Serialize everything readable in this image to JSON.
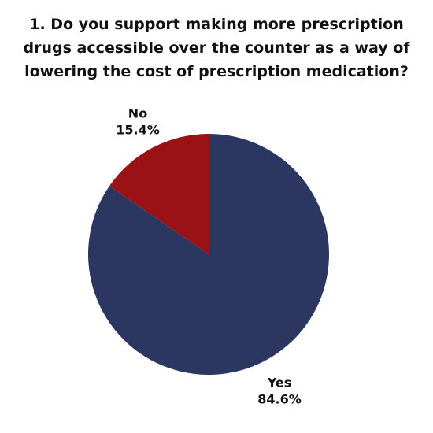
{
  "chart_data": {
    "type": "pie",
    "title": "1. Do you support making more prescription drugs accessible over the counter as a way of lowering the cost of prescription medication?",
    "categories": [
      "Yes",
      "No"
    ],
    "values": [
      84.6,
      15.4
    ],
    "value_labels": [
      "84.6%",
      "15.4%"
    ],
    "colors": [
      "#2b3661",
      "#9a1216"
    ]
  }
}
